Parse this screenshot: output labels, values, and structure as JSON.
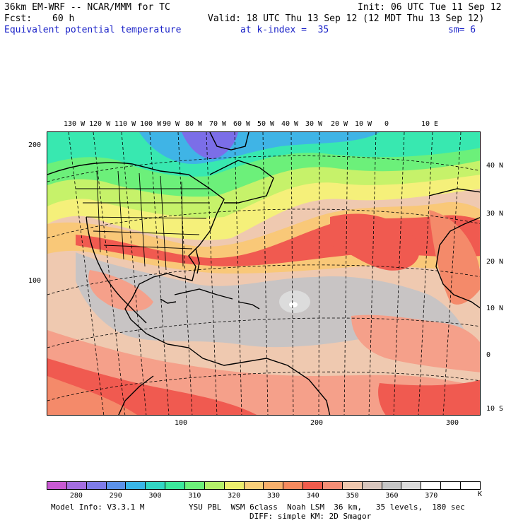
{
  "header": {
    "model": "36km EM-WRF -- NCAR/MMM for TC",
    "init": "Init: 06 UTC Tue 11 Sep 12",
    "fcst_label": "Fcst:",
    "fcst_value": "60 h",
    "valid": "Valid: 18 UTC Thu 13 Sep 12 (12 MDT Thu 13 Sep 12)",
    "field": "Equivalent potential temperature",
    "k_index": "at k-index =  35",
    "sm": "sm= 6"
  },
  "map": {
    "top_longitudes": [
      "130 W",
      "120 W",
      "110 W",
      "100 W",
      "90 W",
      "80 W",
      "70 W",
      "60 W",
      "50 W",
      "40 W",
      "30 W",
      "20 W",
      "10 W",
      "0",
      "10 E"
    ],
    "right_latitudes": [
      "40 N",
      "30 N",
      "20 N",
      "10 N",
      "0",
      "10 S"
    ],
    "left_grid": [
      "200",
      "100"
    ],
    "bottom_grid": [
      "100",
      "200",
      "300"
    ],
    "colors": {
      "cold_blue": "#7b6ee8",
      "mid_blue": "#3fb4e6",
      "teal": "#38e8b0",
      "green": "#6cf07a",
      "yellow_green": "#c6f26a",
      "yellow": "#f5f07a",
      "orange_light": "#f9c878",
      "orange": "#f8a670",
      "red_orange": "#f48a6a",
      "red": "#f05a50",
      "salmon": "#f5a08a",
      "tan": "#efc9b0",
      "grey": "#c8c4c4",
      "grey_light": "#dcdcdc"
    }
  },
  "colorbar": {
    "colors": [
      "#c85ad2",
      "#a46ee0",
      "#7f7ce8",
      "#5c92ea",
      "#3ab6e8",
      "#32d6c4",
      "#3ce89c",
      "#6cf07a",
      "#b4f06a",
      "#ecee6e",
      "#f9d07a",
      "#f8b06c",
      "#f68a5e",
      "#f05c4c",
      "#f48e76",
      "#efc7ae",
      "#d8c6be",
      "#c6c6c6",
      "#dcdcdc",
      "#ffffff",
      "#ffffff",
      "#ffffff"
    ],
    "labels": [
      "280",
      "290",
      "300",
      "310",
      "320",
      "330",
      "340",
      "350",
      "360",
      "370"
    ],
    "unit": "K"
  },
  "footer": {
    "model_info": "Model Info: V3.3.1 M",
    "physics": "YSU PBL  WSM 6class  Noah LSM  36 km,   35 levels,  180 sec",
    "diff": "DIFF: simple KM: 2D Smagor"
  }
}
